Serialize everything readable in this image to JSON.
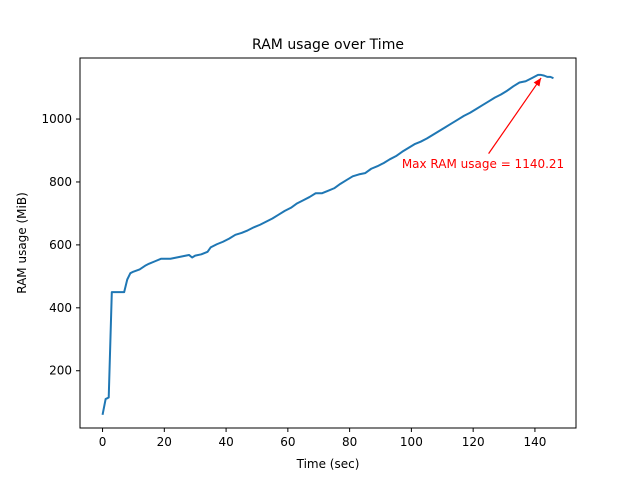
{
  "chart_data": {
    "type": "line",
    "title": "RAM usage over Time",
    "xlabel": "Time (sec)",
    "ylabel": "RAM usage (MiB)",
    "xlim": [
      -7.3,
      153.3
    ],
    "ylim": [
      18,
      1194
    ],
    "xticks": [
      0,
      20,
      40,
      60,
      80,
      100,
      120,
      140
    ],
    "yticks": [
      200,
      400,
      600,
      800,
      1000
    ],
    "grid": false,
    "line_color": "#1f77b4",
    "series": [
      {
        "x": [
          0,
          1,
          2,
          3,
          4,
          5,
          6,
          7,
          8,
          9,
          10,
          12,
          14,
          15,
          17,
          19,
          20,
          22,
          24,
          26,
          28,
          29,
          30,
          32,
          34,
          35,
          37,
          39,
          41,
          43,
          45,
          47,
          49,
          51,
          53,
          55,
          57,
          59,
          61,
          63,
          65,
          67,
          69,
          71,
          73,
          75,
          77,
          79,
          81,
          83,
          85,
          87,
          89,
          91,
          93,
          95,
          97,
          99,
          101,
          103,
          105,
          107,
          109,
          111,
          113,
          115,
          117,
          119,
          121,
          123,
          125,
          127,
          129,
          131,
          133,
          135,
          137,
          139,
          141,
          142,
          143,
          144,
          145,
          146
        ],
        "y": [
          60,
          110,
          115,
          450,
          450,
          450,
          450,
          450,
          490,
          510,
          515,
          522,
          535,
          540,
          548,
          556,
          556,
          556,
          560,
          564,
          568,
          560,
          566,
          570,
          578,
          592,
          602,
          610,
          620,
          632,
          638,
          646,
          656,
          664,
          674,
          684,
          696,
          708,
          718,
          732,
          742,
          752,
          764,
          764,
          772,
          780,
          794,
          806,
          818,
          824,
          828,
          842,
          850,
          860,
          872,
          882,
          896,
          908,
          920,
          928,
          938,
          950,
          962,
          974,
          986,
          998,
          1010,
          1020,
          1032,
          1044,
          1056,
          1068,
          1078,
          1090,
          1104,
          1116,
          1120,
          1130,
          1140.21,
          1140.21,
          1138,
          1134,
          1134,
          1130
        ]
      }
    ],
    "annotation": {
      "text": "Max RAM usage = 1140.21",
      "color": "#ff0000",
      "point": [
        142,
        1140.21
      ],
      "text_anchor_point": [
        125,
        890
      ]
    }
  }
}
